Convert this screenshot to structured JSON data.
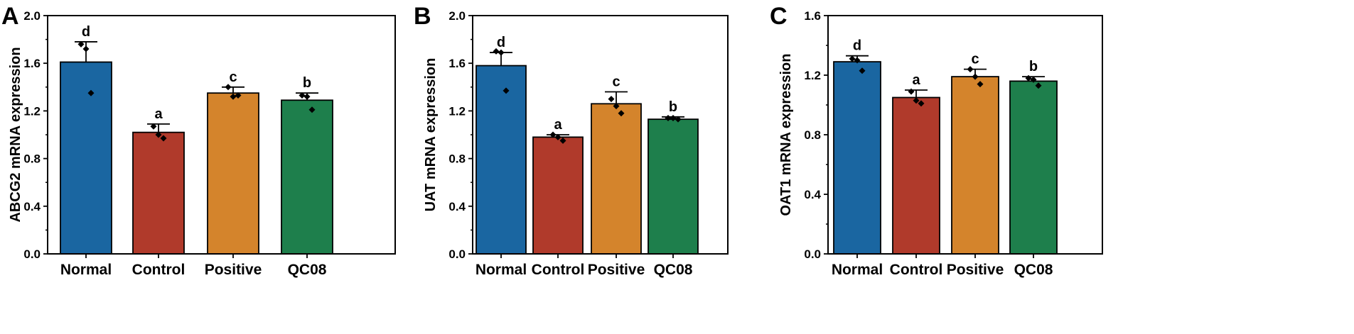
{
  "chart_data": [
    {
      "panel": "A",
      "type": "bar",
      "ylabel": "ABCG2 mRNA expression",
      "ylim": [
        0,
        2.0
      ],
      "yticks": [
        0.0,
        0.4,
        0.8,
        1.2,
        1.6,
        2.0
      ],
      "ytick_labels": [
        "0.0",
        "0.4",
        "0.8",
        "1.2",
        "1.6",
        "2.0"
      ],
      "categories": [
        "Normal",
        "Control",
        "Positive",
        "QC08"
      ],
      "values": [
        1.61,
        1.02,
        1.35,
        1.29
      ],
      "errors": [
        0.17,
        0.07,
        0.05,
        0.06
      ],
      "points": [
        [
          1.76,
          1.72,
          1.35
        ],
        [
          1.07,
          1.0,
          0.97
        ],
        [
          1.4,
          1.32,
          1.33
        ],
        [
          1.33,
          1.32,
          1.21
        ]
      ],
      "significance": [
        "d",
        "a",
        "c",
        "b"
      ],
      "colors": [
        "#1a66a1",
        "#b03a2b",
        "#d4842c",
        "#1e7f4c"
      ]
    },
    {
      "panel": "B",
      "type": "bar",
      "ylabel": "UAT mRNA expression",
      "ylim": [
        0,
        2.0
      ],
      "yticks": [
        0.0,
        0.4,
        0.8,
        1.2,
        1.6,
        2.0
      ],
      "ytick_labels": [
        "0.0",
        "0.4",
        "0.8",
        "1.2",
        "1.6",
        "2.0"
      ],
      "categories": [
        "Normal",
        "Control",
        "Positive",
        "QC08"
      ],
      "values": [
        1.58,
        0.98,
        1.26,
        1.13
      ],
      "errors": [
        0.11,
        0.02,
        0.1,
        0.02
      ],
      "points": [
        [
          1.7,
          1.69,
          1.37
        ],
        [
          1.0,
          0.98,
          0.95
        ],
        [
          1.3,
          1.24,
          1.18
        ],
        [
          1.14,
          1.14,
          1.13
        ]
      ],
      "significance": [
        "d",
        "a",
        "c",
        "b"
      ],
      "colors": [
        "#1a66a1",
        "#b03a2b",
        "#d4842c",
        "#1e7f4c"
      ]
    },
    {
      "panel": "C",
      "type": "bar",
      "ylabel": "OAT1 mRNA expression",
      "ylim": [
        0,
        1.6
      ],
      "yticks": [
        0.0,
        0.4,
        0.8,
        1.2,
        1.6
      ],
      "ytick_labels": [
        "0.0",
        "0.4",
        "0.8",
        "1.2",
        "1.6"
      ],
      "categories": [
        "Normal",
        "Control",
        "Positive",
        "QC08"
      ],
      "values": [
        1.29,
        1.05,
        1.19,
        1.16
      ],
      "errors": [
        0.04,
        0.05,
        0.05,
        0.03
      ],
      "points": [
        [
          1.31,
          1.3,
          1.23
        ],
        [
          1.09,
          1.03,
          1.01
        ],
        [
          1.24,
          1.19,
          1.14
        ],
        [
          1.18,
          1.17,
          1.13
        ]
      ],
      "significance": [
        "d",
        "a",
        "c",
        "b"
      ],
      "colors": [
        "#1a66a1",
        "#b03a2b",
        "#d4842c",
        "#1e7f4c"
      ]
    }
  ]
}
